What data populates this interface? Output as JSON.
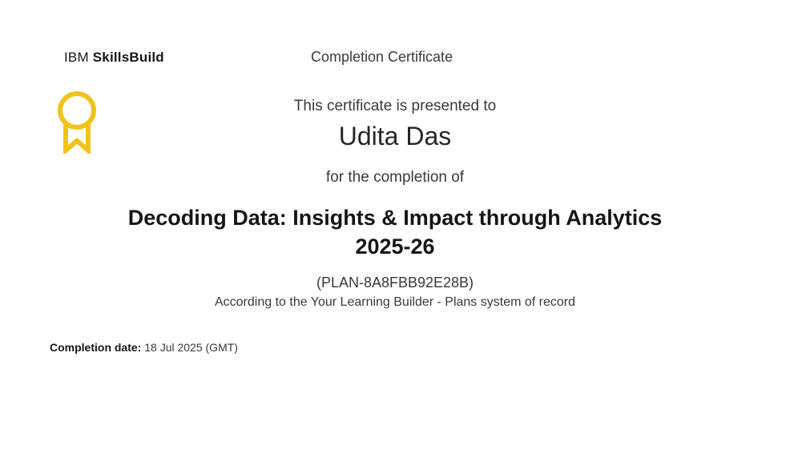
{
  "header": {
    "brand_prefix": "IBM",
    "brand_name": "SkillsBuild",
    "title": "Completion Certificate"
  },
  "badge": {
    "icon": "award-ribbon-icon",
    "color": "#F1C21B"
  },
  "certificate": {
    "presented_to": "This certificate is presented to",
    "recipient": "Udita Das",
    "for_completion": "for the completion of",
    "course_line1": "Decoding Data: Insights & Impact through Analytics",
    "course_line2": "2025-26",
    "plan_id": "(PLAN-8A8FBB92E28B)",
    "record_note": "According to the Your Learning Builder - Plans system of record"
  },
  "completion": {
    "label": "Completion date:",
    "value": "18 Jul 2025 (GMT)"
  }
}
